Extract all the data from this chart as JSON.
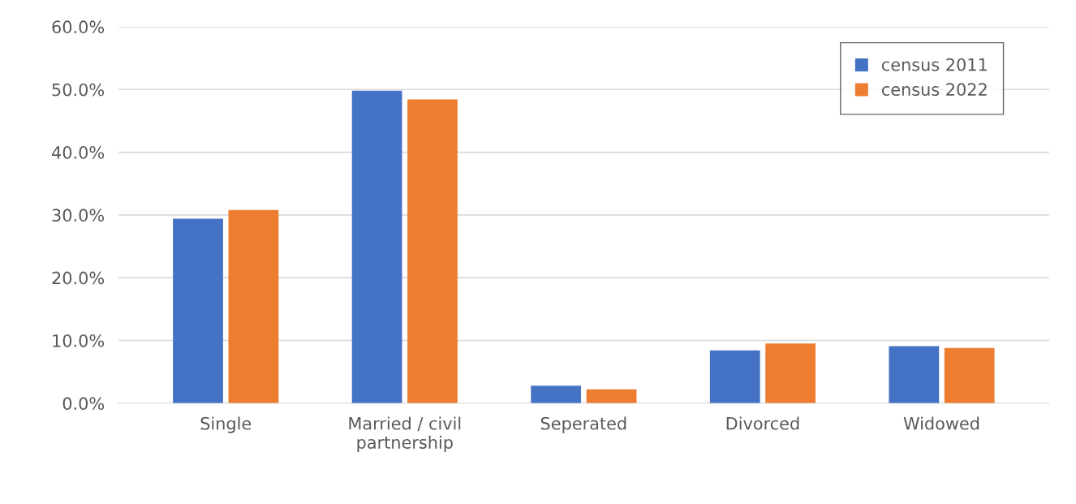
{
  "chart_data": {
    "type": "bar",
    "categories": [
      "Single",
      "Married / civil\npartnership",
      "Seperated",
      "Divorced",
      "Widowed"
    ],
    "series": [
      {
        "name": "census 2011",
        "color": "#4472c4",
        "values": [
          29.4,
          49.8,
          2.8,
          8.4,
          9.1
        ]
      },
      {
        "name": "census 2022",
        "color": "#ed7d31",
        "values": [
          30.8,
          48.4,
          2.2,
          9.5,
          8.8
        ]
      }
    ],
    "ylim": [
      0,
      60
    ],
    "yticks": [
      {
        "value": 0,
        "label": "0.0%"
      },
      {
        "value": 10,
        "label": "10.0%"
      },
      {
        "value": 20,
        "label": "20.0%"
      },
      {
        "value": 30,
        "label": "30.0%"
      },
      {
        "value": 40,
        "label": "40.0%"
      },
      {
        "value": 50,
        "label": "50.0%"
      },
      {
        "value": 60,
        "label": "60.0%"
      }
    ],
    "grid": "y",
    "legend": "top right"
  }
}
